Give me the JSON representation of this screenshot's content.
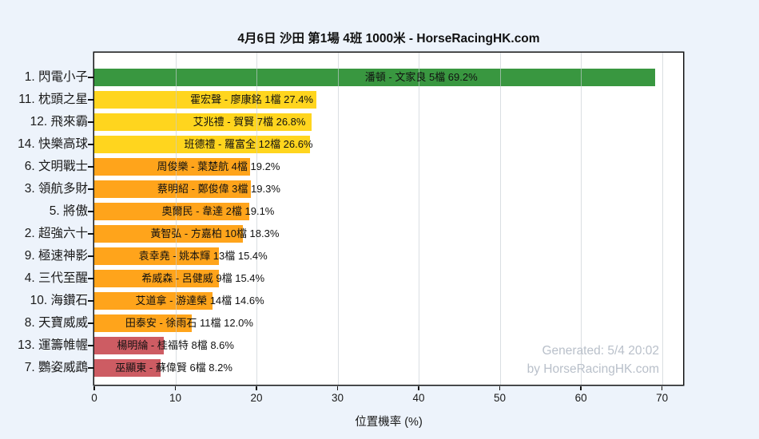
{
  "colors": {
    "background": "#edf3fb",
    "plot_background": "#ffffff",
    "grid": "#c6ccd3",
    "frame": "#141414",
    "text": "#1a1a1a",
    "watermark_text": "#b9c0ca"
  },
  "watermark": {
    "line1": "Generated: 5/4 20:02",
    "line2": "by HorseRacingHK.com"
  },
  "chart_data": {
    "type": "bar",
    "orientation": "horizontal",
    "title": "4月6日 沙田 第1場 4班 1000米 - HorseRacingHK.com",
    "xlabel": "位置機率 (%)",
    "ylabel": "",
    "xlim": [
      0,
      72.6
    ],
    "xticks": [
      0,
      10,
      20,
      30,
      40,
      50,
      60,
      70
    ],
    "grid": "vertical-over-bars",
    "legend": "none",
    "categories": [
      "1. 閃電小子",
      "11. 枕頭之星",
      "12. 飛來霸",
      "14. 快樂高球",
      "6. 文明戰士",
      "3. 領航多財",
      "5. 將傲",
      "2. 超強六十",
      "9. 極速神影",
      "4. 三代至醒",
      "10. 海鑽石",
      "8. 天寶威威",
      "13. 運籌帷幄",
      "7. 鸚姿威鵡"
    ],
    "values": [
      69.2,
      27.4,
      26.8,
      26.6,
      19.2,
      19.3,
      19.1,
      18.3,
      15.4,
      15.4,
      14.6,
      12.0,
      8.6,
      8.2
    ],
    "bar_labels": [
      "潘頓 - 文家良 5檔  69.2%",
      "霍宏聲 - 廖康銘 1檔  27.4%",
      "艾兆禮 - 賀賢 7檔  26.8%",
      "班德禮 - 羅富全 12檔  26.6%",
      "周俊樂 - 葉楚航 4檔  19.2%",
      "蔡明紹 - 鄭俊偉 3檔  19.3%",
      "奧爾民 - 韋達 2檔  19.1%",
      "黃智弘 - 方嘉柏 10檔  18.3%",
      "袁幸堯 - 姚本輝 13檔  15.4%",
      "希威森 - 呂健威 9檔  15.4%",
      "艾道拿 - 游達榮 14檔  14.6%",
      "田泰安 - 徐雨石 11檔  12.0%",
      "楊明綸 - 桂福特 8檔  8.6%",
      "巫顯東 - 蘇偉賢 6檔  8.2%"
    ],
    "bar_colors": [
      "green",
      "yellow",
      "yellow",
      "yellow",
      "orange",
      "orange",
      "orange",
      "orange",
      "orange",
      "orange",
      "orange",
      "orange",
      "rose",
      "rose"
    ],
    "palette": {
      "green": "#399740",
      "yellow": "#ffd51e",
      "orange": "#ffa41b",
      "rose": "#cd5c63"
    }
  }
}
